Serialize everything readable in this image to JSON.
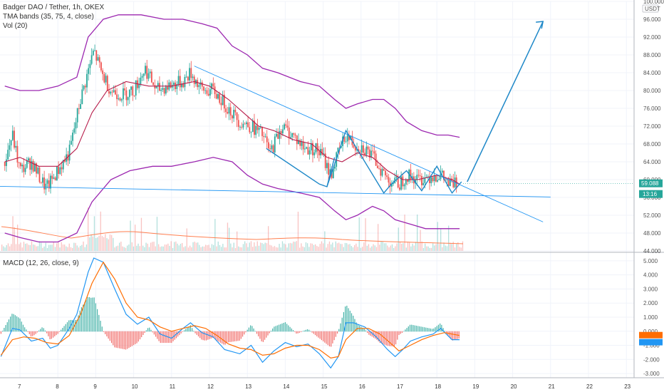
{
  "legend": {
    "symbol_line": "Badger DAO / Tether, 1h, OKEX",
    "tma_line": "TMA bands (35, 75, 4, close)",
    "vol_line": "Vol (20)",
    "macd_line": "MACD (12, 26, close, 9)"
  },
  "colors": {
    "up": "#26a69a",
    "down": "#ef5350",
    "tma_band": "#9c27b0",
    "tma_mid": "#b71c4a",
    "trendline": "#2196f3",
    "pattern": "#1e88c8",
    "macd": "#2196f3",
    "signal": "#ff6d00",
    "vol_ma": "#ff7f50"
  },
  "chart_data": [
    {
      "type": "candlestick",
      "title": "Badger DAO / Tether, 1h, OKEX",
      "currency": "USDT",
      "x_ticks": [
        "7",
        "8",
        "9",
        "10",
        "11",
        "12",
        "13",
        "14",
        "15",
        "16",
        "17",
        "18",
        "19",
        "20",
        "21",
        "22",
        "23"
      ],
      "y_ticks": [
        "100.000",
        "96.000",
        "92.000",
        "88.000",
        "84.000",
        "80.000",
        "76.000",
        "72.000",
        "68.000",
        "64.000",
        "60.000",
        "56.000",
        "52.000",
        "48.000",
        "44.000"
      ],
      "ylim": [
        44,
        100
      ],
      "last_price_label": "59.088",
      "last_price": 59.088,
      "second_label": "13:16",
      "close_path": [
        [
          6.6,
          64
        ],
        [
          6.8,
          70
        ],
        [
          7.0,
          62
        ],
        [
          7.3,
          64
        ],
        [
          7.55,
          60
        ],
        [
          7.7,
          58
        ],
        [
          8.0,
          62
        ],
        [
          8.3,
          66
        ],
        [
          8.6,
          78
        ],
        [
          8.95,
          89
        ],
        [
          9.15,
          84
        ],
        [
          9.4,
          80
        ],
        [
          9.7,
          79
        ],
        [
          10.0,
          80
        ],
        [
          10.3,
          85
        ],
        [
          10.6,
          80
        ],
        [
          10.9,
          81
        ],
        [
          11.3,
          82
        ],
        [
          11.5,
          84
        ],
        [
          11.8,
          80
        ],
        [
          12.1,
          80
        ],
        [
          12.5,
          76
        ],
        [
          12.8,
          73
        ],
        [
          13.1,
          72
        ],
        [
          13.4,
          70
        ],
        [
          13.6,
          66
        ],
        [
          13.9,
          72
        ],
        [
          14.2,
          70
        ],
        [
          14.5,
          67
        ],
        [
          14.8,
          67
        ],
        [
          15.0,
          65
        ],
        [
          15.2,
          61
        ],
        [
          15.4,
          66
        ],
        [
          15.6,
          70
        ],
        [
          15.8,
          68
        ],
        [
          16.1,
          67
        ],
        [
          16.4,
          64
        ],
        [
          16.7,
          60
        ],
        [
          17.0,
          59
        ],
        [
          17.2,
          61
        ],
        [
          17.5,
          60
        ],
        [
          17.9,
          61
        ],
        [
          18.1,
          61
        ],
        [
          18.3,
          59
        ],
        [
          18.55,
          59
        ]
      ],
      "tma_upper": [
        [
          6.6,
          81
        ],
        [
          7.0,
          80
        ],
        [
          7.5,
          80
        ],
        [
          8.0,
          81
        ],
        [
          8.5,
          83
        ],
        [
          8.8,
          92
        ],
        [
          9.2,
          96
        ],
        [
          9.6,
          97
        ],
        [
          10.2,
          97
        ],
        [
          10.8,
          96
        ],
        [
          11.3,
          96
        ],
        [
          11.8,
          95
        ],
        [
          12.2,
          94
        ],
        [
          12.6,
          90
        ],
        [
          13.0,
          88
        ],
        [
          13.4,
          85
        ],
        [
          13.8,
          84
        ],
        [
          14.4,
          82
        ],
        [
          14.9,
          81
        ],
        [
          15.3,
          78
        ],
        [
          15.6,
          76
        ],
        [
          15.9,
          77
        ],
        [
          16.3,
          78
        ],
        [
          16.6,
          78
        ],
        [
          16.9,
          76
        ],
        [
          17.2,
          73
        ],
        [
          17.6,
          71
        ],
        [
          18.0,
          70
        ],
        [
          18.3,
          70
        ],
        [
          18.6,
          69.5
        ]
      ],
      "tma_lower": [
        [
          6.6,
          48
        ],
        [
          7.0,
          47
        ],
        [
          7.5,
          46
        ],
        [
          8.0,
          46
        ],
        [
          8.5,
          48
        ],
        [
          8.9,
          55
        ],
        [
          9.4,
          60
        ],
        [
          9.9,
          62
        ],
        [
          10.5,
          63
        ],
        [
          11.0,
          63
        ],
        [
          11.6,
          64
        ],
        [
          12.1,
          65
        ],
        [
          12.6,
          64
        ],
        [
          13.0,
          61
        ],
        [
          13.4,
          59
        ],
        [
          13.8,
          58
        ],
        [
          14.4,
          57
        ],
        [
          14.9,
          56
        ],
        [
          15.3,
          53
        ],
        [
          15.6,
          51
        ],
        [
          15.9,
          52
        ],
        [
          16.3,
          54
        ],
        [
          16.6,
          53
        ],
        [
          16.9,
          51
        ],
        [
          17.3,
          50
        ],
        [
          17.7,
          49
        ],
        [
          18.1,
          49
        ],
        [
          18.6,
          49
        ]
      ],
      "tma_mid": [
        [
          6.6,
          64
        ],
        [
          7.0,
          65
        ],
        [
          7.5,
          63
        ],
        [
          8.0,
          63
        ],
        [
          8.5,
          67
        ],
        [
          8.9,
          75
        ],
        [
          9.3,
          80
        ],
        [
          9.8,
          82
        ],
        [
          10.4,
          81
        ],
        [
          11.0,
          81
        ],
        [
          11.6,
          82
        ],
        [
          12.0,
          81
        ],
        [
          12.5,
          78
        ],
        [
          12.9,
          75
        ],
        [
          13.3,
          72
        ],
        [
          13.7,
          71
        ],
        [
          14.2,
          69
        ],
        [
          14.7,
          68
        ],
        [
          15.1,
          65
        ],
        [
          15.5,
          64
        ],
        [
          15.9,
          66
        ],
        [
          16.3,
          65
        ],
        [
          16.7,
          62
        ],
        [
          17.1,
          60
        ],
        [
          17.5,
          60
        ],
        [
          18.0,
          61
        ],
        [
          18.4,
          60
        ],
        [
          18.6,
          59
        ]
      ],
      "trendlines": [
        {
          "from": [
            6.4,
            58.5
          ],
          "to": [
            21.0,
            56.1
          ]
        },
        {
          "from": [
            11.6,
            85.5
          ],
          "to": [
            20.8,
            50.5
          ]
        }
      ],
      "pattern_lines": [
        [
          15.1,
          58.4
        ],
        [
          15.6,
          71
        ],
        [
          16.6,
          57
        ],
        [
          16.8,
          59
        ],
        [
          17.2,
          62
        ],
        [
          17.6,
          57.5
        ],
        [
          18.0,
          63
        ],
        [
          18.4,
          57
        ],
        [
          18.65,
          59.5
        ]
      ],
      "pattern_lines_b": [
        [
          13.5,
          67
        ],
        [
          14.9,
          59
        ],
        [
          15.1,
          58.4
        ],
        [
          15.3,
          65
        ]
      ],
      "projection": [
        [
          18.8,
          59.5
        ],
        [
          20.8,
          95.5
        ]
      ]
    },
    {
      "type": "bar",
      "title": "Vol (20)",
      "note": "volume histogram with moving average"
    },
    {
      "type": "line",
      "title": "MACD (12, 26, close, 9)",
      "y_ticks": [
        "5.000",
        "4.000",
        "3.000",
        "2.000",
        "1.000",
        "0.000",
        "-1.000",
        "-2.000",
        "-3.000"
      ],
      "ylim": [
        -3.3,
        5.4
      ],
      "series": [
        {
          "name": "MACD",
          "values": [
            [
              6.5,
              -1.8
            ],
            [
              6.8,
              0.2
            ],
            [
              7.0,
              0.1
            ],
            [
              7.3,
              -0.7
            ],
            [
              7.6,
              -0.5
            ],
            [
              7.8,
              -1.2
            ],
            [
              8.0,
              -1.0
            ],
            [
              8.3,
              0.2
            ],
            [
              8.5,
              1.2
            ],
            [
              8.8,
              4.2
            ],
            [
              8.95,
              5.2
            ],
            [
              9.2,
              4.9
            ],
            [
              9.5,
              3.0
            ],
            [
              9.8,
              1.2
            ],
            [
              10.1,
              0.5
            ],
            [
              10.4,
              1.0
            ],
            [
              10.7,
              -0.2
            ],
            [
              11.0,
              -0.5
            ],
            [
              11.3,
              0.2
            ],
            [
              11.5,
              0.6
            ],
            [
              11.8,
              -0.1
            ],
            [
              12.1,
              -0.4
            ],
            [
              12.4,
              -1.3
            ],
            [
              12.8,
              -1.6
            ],
            [
              13.1,
              -1.0
            ],
            [
              13.4,
              -2.2
            ],
            [
              13.7,
              -1.4
            ],
            [
              14.0,
              -0.8
            ],
            [
              14.3,
              -1.1
            ],
            [
              14.6,
              -0.9
            ],
            [
              14.9,
              -1.6
            ],
            [
              15.2,
              -2.6
            ],
            [
              15.4,
              -1.8
            ],
            [
              15.6,
              0.6
            ],
            [
              15.8,
              0.6
            ],
            [
              16.1,
              0.3
            ],
            [
              16.4,
              -0.4
            ],
            [
              16.7,
              -1.3
            ],
            [
              16.9,
              -1.8
            ],
            [
              17.1,
              -1.3
            ],
            [
              17.3,
              -0.7
            ],
            [
              17.6,
              -0.4
            ],
            [
              17.9,
              -0.2
            ],
            [
              18.1,
              0.2
            ],
            [
              18.4,
              -0.6
            ],
            [
              18.6,
              -0.6
            ]
          ]
        },
        {
          "name": "Signal",
          "values": [
            [
              6.5,
              -1.7
            ],
            [
              6.8,
              -0.6
            ],
            [
              7.1,
              -0.4
            ],
            [
              7.4,
              -0.5
            ],
            [
              7.7,
              -0.8
            ],
            [
              8.0,
              -0.9
            ],
            [
              8.3,
              -0.3
            ],
            [
              8.6,
              1.2
            ],
            [
              8.9,
              3.4
            ],
            [
              9.2,
              4.9
            ],
            [
              9.5,
              3.7
            ],
            [
              9.8,
              2.0
            ],
            [
              10.1,
              1.0
            ],
            [
              10.4,
              0.8
            ],
            [
              10.7,
              0.3
            ],
            [
              11.0,
              0.0
            ],
            [
              11.3,
              0.2
            ],
            [
              11.6,
              0.4
            ],
            [
              11.9,
              0.2
            ],
            [
              12.2,
              -0.3
            ],
            [
              12.5,
              -0.9
            ],
            [
              12.8,
              -1.2
            ],
            [
              13.1,
              -1.3
            ],
            [
              13.4,
              -1.7
            ],
            [
              13.7,
              -1.6
            ],
            [
              14.0,
              -1.2
            ],
            [
              14.3,
              -1.0
            ],
            [
              14.6,
              -1.0
            ],
            [
              14.9,
              -1.3
            ],
            [
              15.2,
              -1.9
            ],
            [
              15.4,
              -1.8
            ],
            [
              15.6,
              -0.6
            ],
            [
              15.9,
              0.2
            ],
            [
              16.2,
              0.2
            ],
            [
              16.5,
              -0.2
            ],
            [
              16.8,
              -0.9
            ],
            [
              17.0,
              -1.4
            ],
            [
              17.3,
              -1.0
            ],
            [
              17.6,
              -0.6
            ],
            [
              17.9,
              -0.3
            ],
            [
              18.2,
              -0.1
            ],
            [
              18.6,
              -0.3
            ]
          ]
        }
      ]
    }
  ]
}
